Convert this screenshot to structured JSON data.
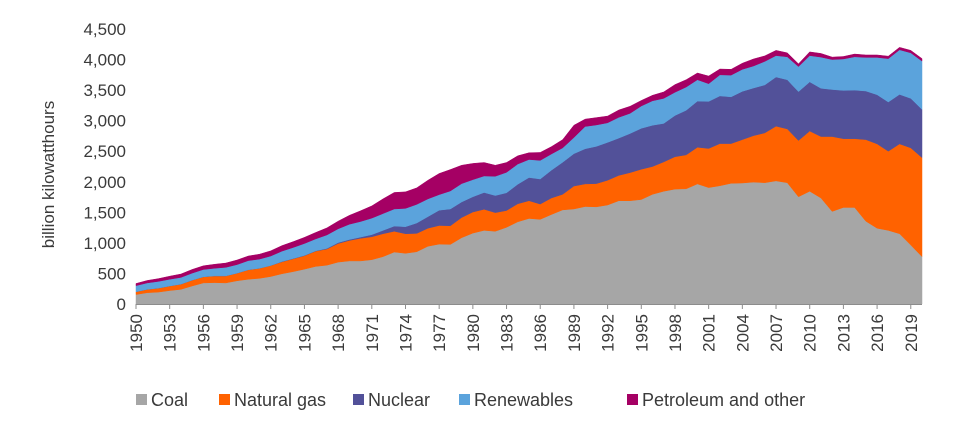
{
  "chart_data": {
    "type": "area",
    "stacked": true,
    "title": "",
    "xlabel": "",
    "ylabel": "billion kilowatthours",
    "ylim": [
      0,
      4500
    ],
    "yticks": [
      0,
      500,
      1000,
      1500,
      2000,
      2500,
      3000,
      3500,
      4000,
      4500
    ],
    "ytick_labels": [
      "0",
      "500",
      "1,000",
      "1,500",
      "2,000",
      "2,500",
      "3,000",
      "3,500",
      "4,000",
      "4,500"
    ],
    "xlim": [
      1950,
      2020
    ],
    "xticks": [
      1950,
      1953,
      1956,
      1959,
      1962,
      1965,
      1968,
      1971,
      1974,
      1977,
      1980,
      1983,
      1986,
      1989,
      1992,
      1995,
      1998,
      2001,
      2004,
      2007,
      2010,
      2013,
      2016,
      2019
    ],
    "grid": false,
    "legend": "bottom",
    "x": [
      1950,
      1951,
      1952,
      1953,
      1954,
      1955,
      1956,
      1957,
      1958,
      1959,
      1960,
      1961,
      1962,
      1963,
      1964,
      1965,
      1966,
      1967,
      1968,
      1969,
      1970,
      1971,
      1972,
      1973,
      1974,
      1975,
      1976,
      1977,
      1978,
      1979,
      1980,
      1981,
      1982,
      1983,
      1984,
      1985,
      1986,
      1987,
      1988,
      1989,
      1990,
      1991,
      1992,
      1993,
      1994,
      1995,
      1996,
      1997,
      1998,
      1999,
      2000,
      2001,
      2002,
      2003,
      2004,
      2005,
      2006,
      2007,
      2008,
      2009,
      2010,
      2011,
      2012,
      2013,
      2014,
      2015,
      2016,
      2017,
      2018,
      2019,
      2020
    ],
    "series": [
      {
        "name": "Coal",
        "color": "#a6a6a6",
        "values": [
          155,
          185,
          195,
          220,
          240,
          295,
          345,
          350,
          345,
          380,
          405,
          420,
          450,
          495,
          530,
          570,
          615,
          635,
          685,
          705,
          705,
          725,
          775,
          850,
          830,
          855,
          945,
          980,
          975,
          1085,
          1160,
          1205,
          1190,
          1255,
          1345,
          1400,
          1385,
          1465,
          1540,
          1555,
          1595,
          1590,
          1620,
          1690,
          1690,
          1710,
          1795,
          1845,
          1880,
          1885,
          1965,
          1905,
          1935,
          1975,
          1980,
          1995,
          1985,
          2015,
          1985,
          1755,
          1845,
          1735,
          1515,
          1580,
          1580,
          1355,
          1240,
          1205,
          1150,
          965,
          775
        ]
      },
      {
        "name": "Natural gas",
        "color": "#ff6200",
        "values": [
          45,
          55,
          65,
          75,
          85,
          95,
          100,
          110,
          115,
          125,
          155,
          165,
          180,
          195,
          210,
          220,
          250,
          265,
          305,
          335,
          370,
          375,
          375,
          340,
          320,
          300,
          295,
          305,
          305,
          330,
          345,
          345,
          305,
          275,
          295,
          290,
          250,
          270,
          255,
          375,
          370,
          380,
          405,
          415,
          460,
          495,
          455,
          480,
          530,
          555,
          600,
          640,
          690,
          650,
          710,
          760,
          815,
          895,
          880,
          920,
          985,
          1005,
          1225,
          1125,
          1125,
          1335,
          1380,
          1295,
          1470,
          1590,
          1620
        ]
      },
      {
        "name": "Nuclear",
        "color": "#525199",
        "values": [
          0,
          0,
          0,
          0,
          0,
          0,
          0,
          0,
          0,
          0,
          0,
          0,
          0,
          5,
          5,
          5,
          5,
          10,
          15,
          15,
          20,
          35,
          55,
          85,
          115,
          170,
          190,
          250,
          275,
          255,
          250,
          275,
          280,
          290,
          320,
          380,
          410,
          455,
          525,
          530,
          575,
          610,
          620,
          610,
          640,
          670,
          675,
          630,
          675,
          730,
          755,
          770,
          780,
          765,
          790,
          780,
          785,
          805,
          805,
          800,
          805,
          790,
          770,
          790,
          795,
          795,
          805,
          805,
          810,
          810,
          790
        ]
      },
      {
        "name": "Renewables",
        "color": "#5ba3dc",
        "values": [
          100,
          105,
          110,
          110,
          110,
          115,
          120,
          125,
          140,
          140,
          150,
          150,
          155,
          170,
          180,
          195,
          195,
          220,
          225,
          250,
          255,
          270,
          275,
          280,
          300,
          305,
          290,
          255,
          295,
          300,
          280,
          270,
          315,
          335,
          330,
          295,
          305,
          265,
          235,
          265,
          365,
          350,
          320,
          340,
          330,
          365,
          400,
          410,
          380,
          380,
          350,
          290,
          345,
          355,
          360,
          360,
          385,
          350,
          375,
          410,
          430,
          510,
          490,
          515,
          545,
          550,
          610,
          710,
          730,
          745,
          790
        ]
      },
      {
        "name": "Petroleum and other",
        "color": "#a50064",
        "values": [
          35,
          40,
          45,
          50,
          55,
          60,
          60,
          65,
          70,
          75,
          75,
          80,
          85,
          90,
          95,
          100,
          105,
          115,
          125,
          145,
          175,
          200,
          240,
          270,
          270,
          270,
          305,
          345,
          350,
          300,
          265,
          220,
          180,
          160,
          135,
          110,
          130,
          120,
          135,
          200,
          120,
          120,
          110,
          120,
          115,
          90,
          90,
          105,
          125,
          120,
          110,
          125,
          95,
          95,
          100,
          115,
          90,
          85,
          65,
          45,
          60,
          60,
          40,
          40,
          45,
          40,
          40,
          40,
          40,
          40,
          40
        ]
      }
    ]
  }
}
